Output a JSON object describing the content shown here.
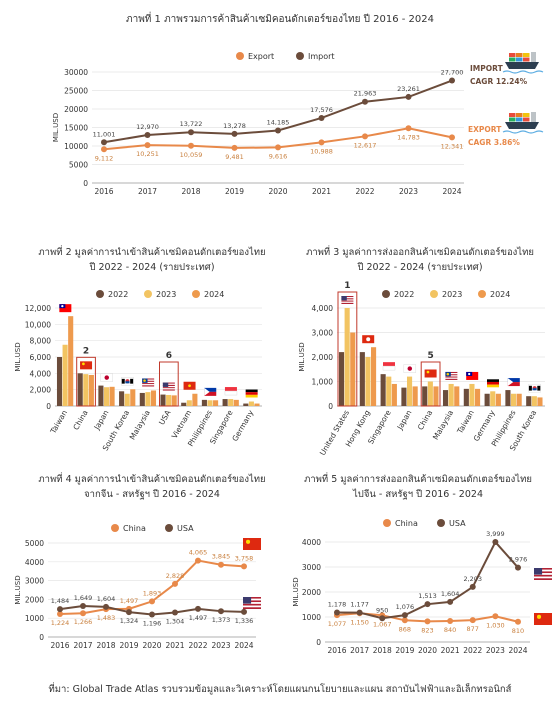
{
  "source": "ที่มา: Global Trade Atlas รวบรวมข้อมูลและวิเคราะห์โดยแผนกนโยบายและแผน สถาบันไฟฟ้าและอิเล็กทรอนิกส์",
  "colors": {
    "export": "#e8894a",
    "import": "#6b4c3b",
    "y2022": "#6b4c3b",
    "y2023": "#f2c462",
    "y2024": "#ee9a4d",
    "axis": "#999999",
    "grid": "#e5e5e5",
    "highlight": "#c0392b"
  },
  "chart_data": [
    {
      "id": "c1",
      "type": "line",
      "title": "ภาพที่ 1 ภาพรวมการค้าสินค้าเซมิคอนดักเตอร์ของไทย ปี 2016 - 2024",
      "ylabel": "MIL.USD",
      "ylim": [
        0,
        30000
      ],
      "yticks": [
        "0",
        "5000",
        "10000",
        "15000",
        "20000",
        "25000",
        "30000"
      ],
      "x": [
        "2016",
        "2017",
        "2018",
        "2019",
        "2020",
        "2021",
        "2022",
        "2023",
        "2024"
      ],
      "series": [
        {
          "name": "Export",
          "key": "export",
          "values": [
            9112,
            10251,
            10059,
            9481,
            9616,
            10988,
            12617,
            14783,
            12341
          ],
          "labels": [
            "9,112",
            "10,251",
            "10,059",
            "9,481",
            "9,616",
            "10,988",
            "12,617",
            "14,783",
            "12,341"
          ]
        },
        {
          "name": "Import",
          "key": "import",
          "values": [
            11001,
            12970,
            13722,
            13278,
            14185,
            17576,
            21963,
            23261,
            27700
          ],
          "labels": [
            "11,001",
            "12,970",
            "13,722",
            "13,278",
            "14,185",
            "17,576",
            "21,963",
            "23,261",
            "27,700"
          ]
        }
      ],
      "annotations": [
        {
          "series": "import",
          "name": "IMPORT",
          "cagr": "CAGR 12.24%",
          "icon": "container-ship-icon"
        },
        {
          "series": "export",
          "name": "EXPORT",
          "cagr": "CAGR 3.86%",
          "icon": "container-ship-icon"
        }
      ]
    },
    {
      "id": "c2",
      "type": "bar",
      "title": [
        "ภาพที่ 2 มูลค่าการนำเข้าสินค้าเซมิคอนดักเตอร์ของไทย",
        "ปี 2022 - 2024 (รายประเทศ)"
      ],
      "ylabel": "MIL.USD",
      "ylim": [
        0,
        12000
      ],
      "yticks": [
        "0",
        "2,000",
        "4,000",
        "6,000",
        "8,000",
        "10,000",
        "12,000"
      ],
      "categories": [
        "Taiwan",
        "China",
        "Japan",
        "South Korea",
        "Malaysia",
        "USA",
        "Vietnam",
        "Philippines",
        "Singapore",
        "Germany"
      ],
      "flags": [
        "flag-taiwan",
        "flag-china",
        "flag-japan",
        "flag-south-korea",
        "flag-malaysia",
        "flag-usa",
        "flag-vietnam",
        "flag-philippines",
        "flag-singapore",
        "flag-germany"
      ],
      "series": [
        {
          "name": "2022",
          "key": "y2022",
          "values": [
            6000,
            4000,
            2500,
            1800,
            1600,
            1400,
            400,
            750,
            850,
            300
          ]
        },
        {
          "name": "2023",
          "key": "y2023",
          "values": [
            7500,
            3900,
            2300,
            1500,
            1700,
            1350,
            700,
            700,
            850,
            550
          ]
        },
        {
          "name": "2024",
          "key": "y2024",
          "values": [
            11000,
            3800,
            2350,
            2050,
            1900,
            1300,
            1500,
            700,
            750,
            300
          ]
        }
      ],
      "highlights": [
        {
          "index": 1,
          "rank": "2"
        },
        {
          "index": 5,
          "rank": "6"
        }
      ]
    },
    {
      "id": "c3",
      "type": "bar",
      "title": [
        "ภาพที่ 3 มูลค่าการส่งออกสินค้าเซมิคอนดักเตอร์ของไทย",
        "ปี 2022 - 2024 (รายประเทศ)"
      ],
      "ylabel": "MIL.USD",
      "ylim": [
        0,
        4000
      ],
      "yticks": [
        "0",
        "1,000",
        "2,000",
        "3,000",
        "4,000"
      ],
      "categories": [
        "United States",
        "Hong Kong",
        "Singapore",
        "Japan",
        "China",
        "Malaysia",
        "Taiwan",
        "Germany",
        "Philippines",
        "South Korea"
      ],
      "flags": [
        "flag-usa",
        "flag-hong-kong",
        "flag-singapore",
        "flag-japan",
        "flag-china",
        "flag-malaysia",
        "flag-taiwan",
        "flag-germany",
        "flag-philippines",
        "flag-south-korea"
      ],
      "series": [
        {
          "name": "2022",
          "key": "y2022",
          "values": [
            2200,
            2200,
            1300,
            750,
            800,
            650,
            700,
            500,
            650,
            400
          ]
        },
        {
          "name": "2023",
          "key": "y2023",
          "values": [
            4000,
            2000,
            1200,
            1200,
            1000,
            900,
            900,
            600,
            500,
            400
          ]
        },
        {
          "name": "2024",
          "key": "y2024",
          "values": [
            3000,
            2400,
            900,
            800,
            800,
            800,
            700,
            500,
            500,
            350
          ]
        }
      ],
      "highlights": [
        {
          "index": 0,
          "rank": "1"
        },
        {
          "index": 4,
          "rank": "5"
        }
      ]
    },
    {
      "id": "c4",
      "type": "line",
      "title": [
        "ภาพที่ 4 มูลค่าการนำเข้าสินค้าเซมิคอนดักเตอร์ของไทย",
        "จากจีน - สหรัฐฯ ปี 2016 - 2024"
      ],
      "ylabel": "MIL.USD",
      "ylim": [
        0,
        5000
      ],
      "yticks": [
        "0",
        "1000",
        "2000",
        "3000",
        "4000",
        "5000"
      ],
      "x": [
        "2016",
        "2017",
        "2018",
        "2019",
        "2020",
        "2021",
        "2022",
        "2023",
        "2024"
      ],
      "series": [
        {
          "name": "China",
          "key": "export",
          "values": [
            1224,
            1266,
            1483,
            1497,
            1893,
            2828,
            4065,
            3845,
            3758
          ],
          "labels": [
            "1,224",
            "1,266",
            "1,483",
            "1,497",
            "1,893",
            "2,828",
            "4,065",
            "3,845",
            "3,758"
          ]
        },
        {
          "name": "USA",
          "key": "import",
          "values": [
            1484,
            1649,
            1604,
            1324,
            1196,
            1304,
            1497,
            1373,
            1336
          ],
          "labels": [
            "1,484",
            "1,649",
            "1,604",
            "1,324",
            "1,196",
            "1,304",
            "1,497",
            "1,373",
            "1,336"
          ]
        }
      ],
      "flags": [
        "flag-china",
        "flag-usa"
      ]
    },
    {
      "id": "c5",
      "type": "line",
      "title": [
        "ภาพที่ 5 มูลค่าการส่งออกสินค้าเซมิคอนดักเตอร์ของไทย",
        "ไปจีน - สหรัฐฯ ปี 2016 - 2024"
      ],
      "ylabel": "MIL.USD",
      "ylim": [
        0,
        4000
      ],
      "yticks": [
        "0",
        "1000",
        "2000",
        "3000",
        "4000"
      ],
      "x": [
        "2016",
        "2017",
        "2018",
        "2019",
        "2020",
        "2021",
        "2022",
        "2023",
        "2024"
      ],
      "series": [
        {
          "name": "China",
          "key": "export",
          "values": [
            1077,
            1150,
            1067,
            868,
            823,
            840,
            877,
            1030,
            810
          ],
          "labels": [
            "1,077",
            "1,150",
            "1,067",
            "868",
            "823",
            "840",
            "877",
            "1,030",
            "810"
          ]
        },
        {
          "name": "USA",
          "key": "import",
          "values": [
            1178,
            1177,
            950,
            1076,
            1513,
            1604,
            2203,
            3999,
            2976
          ],
          "labels": [
            "1,178",
            "1,177",
            "950",
            "1,076",
            "1,513",
            "1,604",
            "2,203",
            "3,999",
            "2,976"
          ]
        }
      ],
      "flags": [
        "flag-usa",
        "flag-china"
      ]
    }
  ]
}
